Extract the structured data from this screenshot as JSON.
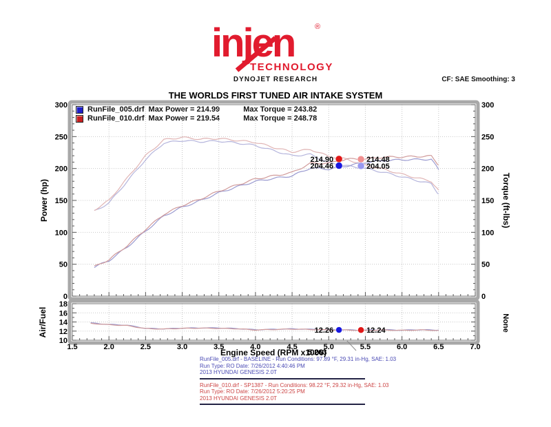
{
  "header": {
    "brand": "injen",
    "registered": "®",
    "subbrand": "TECHNOLOGY",
    "brand_color": "#e11b2e",
    "dynojet": "DYNOJET RESEARCH",
    "cf_smoothing": "CF: SAE  Smoothing: 3",
    "title": "THE WORLDS FIRST TUNED AIR INTAKE SYSTEM"
  },
  "legend": {
    "rows": [
      {
        "swatch_color": "#2020c8",
        "file": "RunFile_005.drf",
        "power": "Max Power = 214.99",
        "torque": "Max Torque = 243.82"
      },
      {
        "swatch_color": "#c82020",
        "file": "RunFile_010.drf",
        "power": "Max Power = 219.54",
        "torque": "Max Torque = 248.78"
      }
    ]
  },
  "axes": {
    "left_main": "Power (hp)",
    "right_main": "Torque (ft-lbs)",
    "left_afr": "Air/Fuel",
    "right_afr": "None",
    "x_title": "Engine Speed (RPM x1000)"
  },
  "cursor": {
    "rpm_label": "5.263"
  },
  "chart_data": {
    "type": "line",
    "title": "THE WORLDS FIRST TUNED AIR INTAKE SYSTEM",
    "xlabel": "Engine Speed (RPM x1000)",
    "x_range": [
      1.5,
      7.0
    ],
    "x_ticks": [
      1.5,
      2.0,
      2.5,
      3.0,
      3.5,
      4.0,
      4.5,
      5.0,
      5.5,
      6.0,
      6.5,
      7.0
    ],
    "grid": true,
    "legend_position": "top-left",
    "panels": [
      {
        "name": "power_torque",
        "ylabel_left": "Power (hp)",
        "ylabel_right": "Torque (ft-lbs)",
        "ylim": [
          0,
          300
        ],
        "y_ticks": [
          0,
          50,
          100,
          150,
          200,
          250,
          300
        ],
        "series": [
          {
            "name": "RunFile_005 Torque (ft-lbs)",
            "color": "#b4b4dc",
            "x": [
              1.8,
              2.0,
              2.25,
              2.5,
              2.75,
              3.0,
              3.25,
              3.5,
              3.75,
              4.0,
              4.25,
              4.5,
              4.75,
              5.0,
              5.25,
              5.5,
              5.75,
              6.0,
              6.25,
              6.4,
              6.5
            ],
            "y": [
              133,
              146,
              180,
              214,
              240,
              243.8,
              242,
              243,
              240,
              236,
              228,
              220,
              222,
              209,
              204,
              200,
              194,
              187,
              180,
              176,
              160
            ]
          },
          {
            "name": "RunFile_010 Torque (ft-lbs)",
            "color": "#e0b4b4",
            "x": [
              1.8,
              2.0,
              2.25,
              2.5,
              2.75,
              3.0,
              3.25,
              3.5,
              3.75,
              4.0,
              4.25,
              4.5,
              4.75,
              5.0,
              5.25,
              5.5,
              5.75,
              6.0,
              6.25,
              6.4,
              6.5
            ],
            "y": [
              135,
              150,
              185,
              220,
              245,
              248.8,
              246,
              247,
              244,
              241,
              233,
              226,
              230,
              219,
              214.5,
              205,
              199,
              191,
              184,
              180,
              166
            ]
          },
          {
            "name": "RunFile_005 Power (hp)",
            "color": "#9a9ad0",
            "x": [
              1.8,
              2.0,
              2.25,
              2.5,
              2.75,
              3.0,
              3.25,
              3.5,
              3.75,
              4.0,
              4.25,
              4.5,
              4.75,
              5.0,
              5.25,
              5.5,
              5.75,
              6.0,
              6.25,
              6.4,
              6.5
            ],
            "y": [
              45.6,
              55.6,
              77.1,
              101.9,
              125.7,
              139.3,
              149.7,
              161.9,
              171.4,
              179.8,
              184.5,
              188.5,
              200.8,
              199.0,
              204.2,
              209.4,
              212.4,
              213.7,
              214.2,
              214.5,
              198.0
            ]
          },
          {
            "name": "RunFile_010 Power (hp)",
            "color": "#d09a9a",
            "x": [
              1.8,
              2.0,
              2.25,
              2.5,
              2.75,
              3.0,
              3.25,
              3.5,
              3.75,
              4.0,
              4.25,
              4.5,
              4.75,
              5.0,
              5.25,
              5.5,
              5.75,
              6.0,
              6.25,
              6.4,
              6.5
            ],
            "y": [
              46.3,
              57.1,
              79.3,
              104.7,
              128.3,
              142.1,
              152.2,
              164.6,
              174.2,
              183.6,
              188.5,
              193.6,
              208.0,
              208.5,
              214.8,
              214.7,
              217.8,
              218.2,
              219.0,
              219.3,
              205.3
            ]
          }
        ],
        "markers": [
          {
            "text": "214.90",
            "x": 5.14,
            "value": 214.9,
            "color": "#e01818",
            "side": "left"
          },
          {
            "text": "214.48",
            "x": 5.44,
            "value": 214.48,
            "color": "#f09090",
            "side": "right"
          },
          {
            "text": "204.46",
            "x": 5.14,
            "value": 204.46,
            "color": "#1818e0",
            "side": "left"
          },
          {
            "text": "204.05",
            "x": 5.44,
            "value": 204.05,
            "color": "#9898f0",
            "side": "right"
          }
        ]
      },
      {
        "name": "air_fuel",
        "ylabel_left": "Air/Fuel",
        "ylabel_right": "None",
        "ylim": [
          10,
          18
        ],
        "y_ticks": [
          10,
          12,
          14,
          16,
          18
        ],
        "series": [
          {
            "name": "RunFile_005 Air/Fuel",
            "color": "#9a9ad0",
            "x": [
              1.75,
              2.0,
              2.25,
              2.5,
              2.75,
              3.0,
              3.25,
              3.5,
              3.75,
              4.0,
              4.25,
              4.5,
              4.75,
              5.0,
              5.25,
              5.5,
              5.75,
              6.0,
              6.25,
              6.5
            ],
            "y": [
              13.8,
              13.45,
              13.3,
              12.6,
              12.5,
              12.65,
              12.7,
              12.7,
              12.55,
              12.3,
              12.4,
              12.5,
              12.4,
              12.3,
              12.26,
              12.2,
              12.3,
              12.2,
              12.3,
              12.2
            ]
          },
          {
            "name": "RunFile_010 Air/Fuel",
            "color": "#d09a9a",
            "x": [
              1.75,
              2.0,
              2.25,
              2.5,
              2.75,
              3.0,
              3.25,
              3.5,
              3.75,
              4.0,
              4.25,
              4.5,
              4.75,
              5.0,
              5.25,
              5.5,
              5.75,
              6.0,
              6.25,
              6.5
            ],
            "y": [
              13.7,
              13.4,
              13.2,
              12.55,
              12.45,
              12.6,
              12.65,
              12.6,
              12.5,
              12.25,
              12.35,
              12.45,
              12.35,
              12.25,
              12.24,
              12.15,
              12.25,
              12.15,
              12.25,
              12.15
            ]
          }
        ],
        "markers": [
          {
            "text": "12.26",
            "x": 5.14,
            "value": 12.26,
            "color": "#1818e0",
            "side": "left"
          },
          {
            "text": "12.24",
            "x": 5.44,
            "value": 12.24,
            "color": "#e01818",
            "side": "right"
          }
        ]
      }
    ],
    "cursor_rpm": 5.263
  },
  "footer": {
    "runs": [
      {
        "color": "#4a4ab4",
        "lines": [
          "RunFile_005.drf - BASELINE -  Run Conditions: 97.89 °F, 29.31 in-Hg, SAE: 1.03",
          "Run Type: RO  Date: 7/26/2012 4:40:46 PM",
          "2013 HYUNDAI GENESIS 2.0T"
        ]
      },
      {
        "color": "#cc4444",
        "lines": [
          "RunFile_010.drf - SP1387 -  Run Conditions: 98.22 °F, 29.32 in-Hg, SAE: 1.03",
          "Run Type: RO  Date: 7/26/2012 5:20:25 PM",
          "2013 HYUNDAI GENESIS 2.0T"
        ]
      }
    ]
  }
}
